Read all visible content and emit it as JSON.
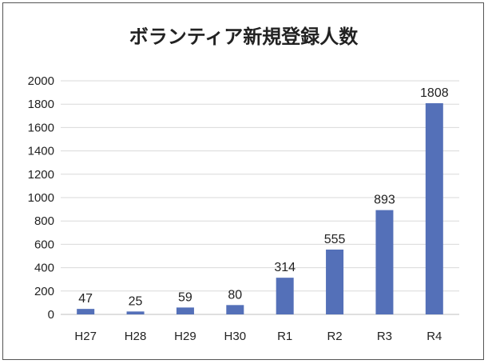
{
  "chart_data": {
    "type": "bar",
    "title": "ボランティア新規登録人数",
    "categories": [
      "H27",
      "H28",
      "H29",
      "H30",
      "R1",
      "R2",
      "R3",
      "R4"
    ],
    "values": [
      47,
      25,
      59,
      80,
      314,
      555,
      893,
      1808
    ],
    "data_labels": [
      "47",
      "25",
      "59",
      "80",
      "314",
      "555",
      "893",
      "1808"
    ],
    "yticks": [
      "0",
      "200",
      "400",
      "600",
      "800",
      "1000",
      "1200",
      "1400",
      "1600",
      "1800",
      "2000"
    ],
    "ylim": [
      0,
      2000
    ],
    "grid": true,
    "legend": "none",
    "colors": {
      "bar": "#5470b8",
      "grid": "#d9d9d9",
      "axis": "#bfbfbf"
    }
  }
}
